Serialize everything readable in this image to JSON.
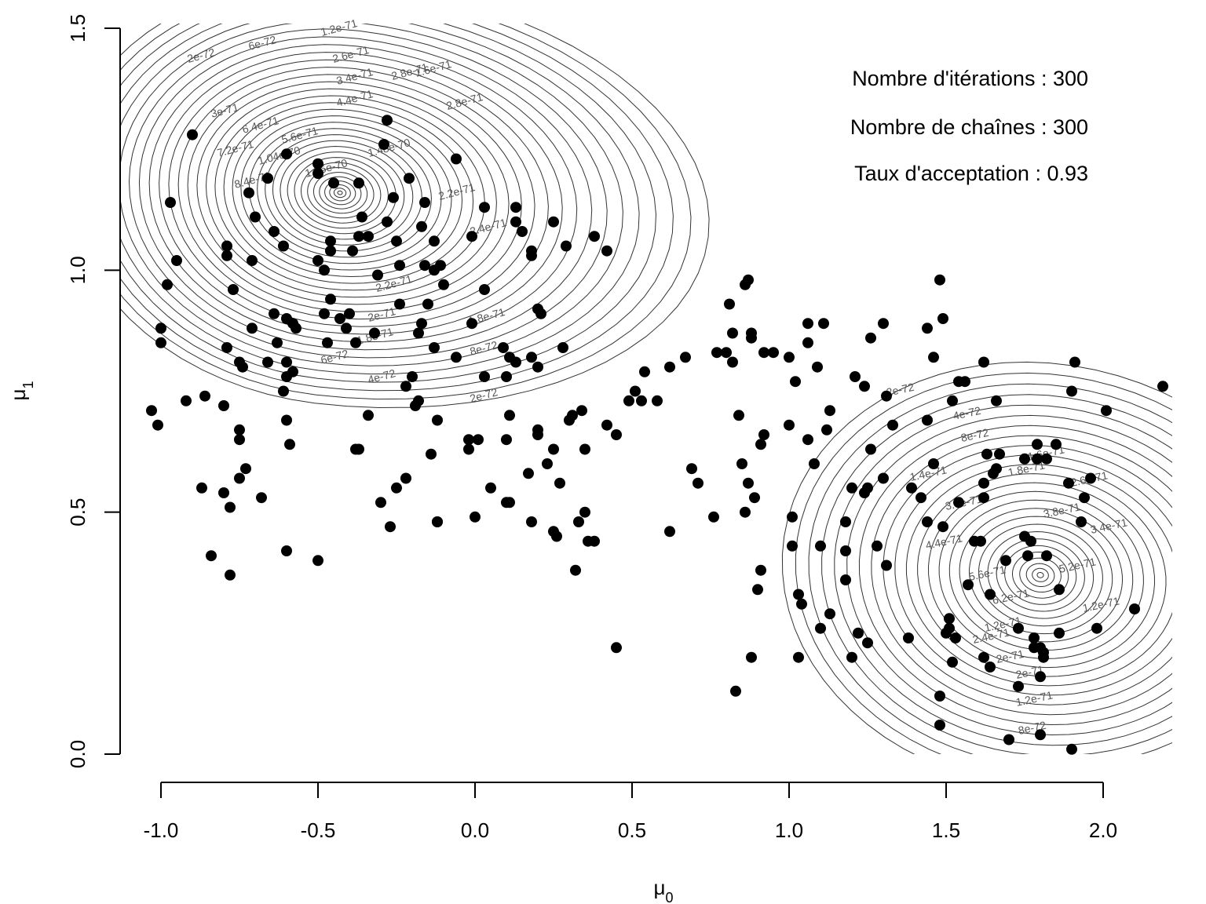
{
  "chart_data": {
    "type": "scatter",
    "xlabel": "μ0",
    "ylabel": "μ1",
    "xlim": [
      -1.05,
      2.2
    ],
    "ylim": [
      0.0,
      1.5
    ],
    "x_ticks": [
      "-1.0",
      "-0.5",
      "0.0",
      "0.5",
      "1.0",
      "1.5",
      "2.0"
    ],
    "y_ticks": [
      "0.0",
      "0.5",
      "1.0",
      "1.5"
    ],
    "annotations": [
      "Nombre d'itérations :  300",
      "Nombre de chaînes :  300",
      "Taux d'acceptation :  0.93"
    ],
    "contour_levels": [
      "2e-72",
      "4e-72",
      "6e-72",
      "8e-72",
      "1e-71",
      "1.2e-71",
      "1.4e-71",
      "1.6e-71",
      "1.8e-71",
      "2e-71",
      "2.2e-71",
      "2.4e-71",
      "2.6e-71",
      "2.8e-71",
      "3e-71",
      "3.4e-71",
      "3.8e-71",
      "4.4e-71",
      "5.2e-71",
      "5.6e-71",
      "6.2e-71",
      "6.4e-71",
      "7.2e-71",
      "8.4e-71",
      "1.04e-70",
      "1.36e-70",
      "1.48e-70"
    ],
    "contour_modes": [
      {
        "x": -0.43,
        "y": 1.16
      },
      {
        "x": 1.8,
        "y": 0.37
      }
    ],
    "points": [
      [
        -0.45,
        1.18
      ],
      [
        -0.5,
        1.22
      ],
      [
        -0.5,
        1.2
      ],
      [
        -0.6,
        1.24
      ],
      [
        -0.37,
        1.18
      ],
      [
        -0.66,
        1.19
      ],
      [
        -0.72,
        1.16
      ],
      [
        -0.79,
        1.05
      ],
      [
        -0.79,
        1.03
      ],
      [
        -0.7,
        1.11
      ],
      [
        -0.64,
        1.08
      ],
      [
        -0.61,
        1.05
      ],
      [
        -0.71,
        1.02
      ],
      [
        -0.97,
        1.14
      ],
      [
        -0.95,
        1.02
      ],
      [
        -0.98,
        0.97
      ],
      [
        -0.9,
        1.28
      ],
      [
        -0.28,
        1.31
      ],
      [
        -0.29,
        1.26
      ],
      [
        -0.26,
        1.15
      ],
      [
        -0.21,
        1.19
      ],
      [
        -0.16,
        1.14
      ],
      [
        -0.17,
        1.09
      ],
      [
        -0.28,
        1.1
      ],
      [
        -0.36,
        1.11
      ],
      [
        -0.34,
        1.07
      ],
      [
        -0.37,
        1.07
      ],
      [
        -0.46,
        1.06
      ],
      [
        -0.46,
        1.04
      ],
      [
        -0.5,
        1.02
      ],
      [
        -0.48,
        1.0
      ],
      [
        -0.39,
        1.04
      ],
      [
        -0.25,
        1.06
      ],
      [
        -0.24,
        1.01
      ],
      [
        -0.31,
        0.99
      ],
      [
        -0.16,
        1.01
      ],
      [
        -0.13,
        1.06
      ],
      [
        -0.13,
        1.0
      ],
      [
        -0.11,
        1.01
      ],
      [
        -0.1,
        0.97
      ],
      [
        -0.15,
        0.93
      ],
      [
        -0.24,
        0.93
      ],
      [
        -0.46,
        0.94
      ],
      [
        -0.48,
        0.91
      ],
      [
        -0.43,
        0.9
      ],
      [
        -0.4,
        0.91
      ],
      [
        -0.41,
        0.88
      ],
      [
        -0.38,
        0.85
      ],
      [
        -0.47,
        0.85
      ],
      [
        -0.64,
        0.91
      ],
      [
        -0.58,
        0.89
      ],
      [
        -0.6,
        0.9
      ],
      [
        -0.57,
        0.88
      ],
      [
        -0.32,
        0.87
      ],
      [
        -0.18,
        0.87
      ],
      [
        -0.17,
        0.89
      ],
      [
        -0.77,
        0.96
      ],
      [
        -0.71,
        0.88
      ],
      [
        -0.79,
        0.84
      ],
      [
        -0.63,
        0.85
      ],
      [
        -0.75,
        0.81
      ],
      [
        -0.74,
        0.8
      ],
      [
        -0.66,
        0.81
      ],
      [
        -0.6,
        0.81
      ],
      [
        -0.58,
        0.79
      ],
      [
        -0.6,
        0.78
      ],
      [
        -0.61,
        0.75
      ],
      [
        -0.13,
        0.84
      ],
      [
        -0.06,
        0.82
      ],
      [
        -0.01,
        0.89
      ],
      [
        0.03,
        0.96
      ],
      [
        -0.06,
        1.23
      ],
      [
        -0.01,
        1.07
      ],
      [
        0.03,
        1.13
      ],
      [
        0.13,
        1.13
      ],
      [
        0.13,
        1.1
      ],
      [
        0.15,
        1.08
      ],
      [
        0.18,
        1.03
      ],
      [
        0.18,
        1.04
      ],
      [
        0.25,
        1.1
      ],
      [
        0.29,
        1.05
      ],
      [
        0.38,
        1.07
      ],
      [
        0.42,
        1.04
      ],
      [
        0.2,
        0.92
      ],
      [
        0.21,
        0.91
      ],
      [
        0.09,
        0.84
      ],
      [
        0.11,
        0.82
      ],
      [
        0.13,
        0.81
      ],
      [
        0.18,
        0.82
      ],
      [
        0.2,
        0.8
      ],
      [
        0.28,
        0.84
      ],
      [
        0.1,
        0.78
      ],
      [
        0.03,
        0.78
      ],
      [
        -1.0,
        0.88
      ],
      [
        -1.0,
        0.85
      ],
      [
        -1.03,
        0.71
      ],
      [
        -1.01,
        0.68
      ],
      [
        -0.92,
        0.73
      ],
      [
        -0.86,
        0.74
      ],
      [
        -0.8,
        0.72
      ],
      [
        -0.75,
        0.67
      ],
      [
        -0.75,
        0.65
      ],
      [
        -0.73,
        0.59
      ],
      [
        -0.75,
        0.57
      ],
      [
        -0.68,
        0.53
      ],
      [
        -0.87,
        0.55
      ],
      [
        -0.8,
        0.54
      ],
      [
        -0.78,
        0.51
      ],
      [
        -0.84,
        0.41
      ],
      [
        -0.78,
        0.37
      ],
      [
        -0.6,
        0.42
      ],
      [
        -0.5,
        0.4
      ],
      [
        -0.6,
        0.69
      ],
      [
        -0.59,
        0.64
      ],
      [
        -0.34,
        0.7
      ],
      [
        -0.38,
        0.63
      ],
      [
        -0.37,
        0.63
      ],
      [
        -0.3,
        0.52
      ],
      [
        -0.27,
        0.47
      ],
      [
        -0.25,
        0.55
      ],
      [
        -0.22,
        0.57
      ],
      [
        -0.22,
        0.76
      ],
      [
        -0.2,
        0.78
      ],
      [
        -0.19,
        0.72
      ],
      [
        -0.18,
        0.73
      ],
      [
        -0.12,
        0.69
      ],
      [
        -0.14,
        0.62
      ],
      [
        -0.12,
        0.48
      ],
      [
        -0.12,
        0.48
      ],
      [
        -0.02,
        0.65
      ],
      [
        -0.02,
        0.63
      ],
      [
        0.01,
        0.65
      ],
      [
        0.0,
        0.49
      ],
      [
        0.05,
        0.55
      ],
      [
        0.1,
        0.52
      ],
      [
        0.1,
        0.65
      ],
      [
        0.11,
        0.7
      ],
      [
        0.11,
        0.52
      ],
      [
        0.17,
        0.58
      ],
      [
        0.18,
        0.48
      ],
      [
        0.2,
        0.66
      ],
      [
        0.2,
        0.67
      ],
      [
        0.23,
        0.6
      ],
      [
        0.25,
        0.63
      ],
      [
        0.25,
        0.46
      ],
      [
        0.26,
        0.45
      ],
      [
        0.27,
        0.56
      ],
      [
        0.3,
        0.69
      ],
      [
        0.31,
        0.7
      ],
      [
        0.34,
        0.71
      ],
      [
        0.35,
        0.5
      ],
      [
        0.33,
        0.48
      ],
      [
        0.32,
        0.38
      ],
      [
        0.35,
        0.63
      ],
      [
        0.36,
        0.44
      ],
      [
        0.38,
        0.44
      ],
      [
        0.42,
        0.68
      ],
      [
        0.45,
        0.66
      ],
      [
        0.45,
        0.22
      ],
      [
        0.62,
        0.46
      ],
      [
        0.49,
        0.73
      ],
      [
        0.51,
        0.75
      ],
      [
        0.53,
        0.73
      ],
      [
        0.54,
        0.79
      ],
      [
        0.58,
        0.73
      ],
      [
        0.62,
        0.8
      ],
      [
        0.67,
        0.82
      ],
      [
        0.69,
        0.59
      ],
      [
        0.71,
        0.56
      ],
      [
        0.76,
        0.49
      ],
      [
        0.77,
        0.83
      ],
      [
        0.8,
        0.83
      ],
      [
        0.81,
        0.93
      ],
      [
        0.82,
        0.87
      ],
      [
        0.82,
        0.81
      ],
      [
        0.84,
        0.7
      ],
      [
        0.85,
        0.6
      ],
      [
        0.86,
        0.5
      ],
      [
        0.87,
        0.56
      ],
      [
        0.86,
        0.97
      ],
      [
        0.87,
        0.98
      ],
      [
        0.88,
        0.87
      ],
      [
        0.88,
        0.86
      ],
      [
        0.89,
        0.53
      ],
      [
        0.9,
        0.34
      ],
      [
        0.91,
        0.64
      ],
      [
        0.91,
        0.38
      ],
      [
        0.92,
        0.66
      ],
      [
        0.92,
        0.83
      ],
      [
        0.95,
        0.83
      ],
      [
        0.83,
        0.13
      ],
      [
        0.88,
        0.2
      ],
      [
        1.0,
        0.82
      ],
      [
        1.0,
        0.68
      ],
      [
        1.01,
        0.49
      ],
      [
        1.01,
        0.43
      ],
      [
        1.02,
        0.77
      ],
      [
        1.03,
        0.33
      ],
      [
        1.04,
        0.31
      ],
      [
        1.03,
        0.2
      ],
      [
        1.06,
        0.89
      ],
      [
        1.06,
        0.85
      ],
      [
        1.06,
        0.65
      ],
      [
        1.08,
        0.6
      ],
      [
        1.09,
        0.8
      ],
      [
        1.1,
        0.43
      ],
      [
        1.11,
        0.89
      ],
      [
        1.1,
        0.26
      ],
      [
        1.12,
        0.67
      ],
      [
        1.13,
        0.71
      ],
      [
        1.13,
        0.29
      ],
      [
        1.18,
        0.48
      ],
      [
        1.18,
        0.42
      ],
      [
        1.18,
        0.36
      ],
      [
        1.2,
        0.2
      ],
      [
        1.2,
        0.55
      ],
      [
        1.21,
        0.78
      ],
      [
        1.22,
        0.25
      ],
      [
        1.24,
        0.76
      ],
      [
        1.24,
        0.54
      ],
      [
        1.25,
        0.23
      ],
      [
        1.25,
        0.55
      ],
      [
        1.26,
        0.86
      ],
      [
        1.26,
        0.63
      ],
      [
        1.28,
        0.43
      ],
      [
        1.3,
        0.89
      ],
      [
        1.31,
        0.74
      ],
      [
        1.3,
        0.57
      ],
      [
        1.31,
        0.39
      ],
      [
        1.33,
        0.68
      ],
      [
        1.38,
        0.24
      ],
      [
        1.39,
        0.55
      ],
      [
        1.42,
        0.53
      ],
      [
        1.44,
        0.48
      ],
      [
        1.44,
        0.69
      ],
      [
        1.44,
        0.88
      ],
      [
        1.46,
        0.82
      ],
      [
        1.46,
        0.6
      ],
      [
        1.48,
        0.98
      ],
      [
        1.49,
        0.9
      ],
      [
        1.48,
        0.12
      ],
      [
        1.48,
        0.06
      ],
      [
        1.49,
        0.47
      ],
      [
        1.5,
        0.25
      ],
      [
        1.51,
        0.26
      ],
      [
        1.51,
        0.28
      ],
      [
        1.52,
        0.19
      ],
      [
        1.52,
        0.73
      ],
      [
        1.53,
        0.24
      ],
      [
        1.54,
        0.77
      ],
      [
        1.56,
        0.77
      ],
      [
        1.57,
        0.35
      ],
      [
        1.59,
        0.44
      ],
      [
        1.61,
        0.44
      ],
      [
        1.54,
        0.52
      ],
      [
        1.62,
        0.81
      ],
      [
        1.62,
        0.53
      ],
      [
        1.62,
        0.56
      ],
      [
        1.62,
        0.2
      ],
      [
        1.64,
        0.18
      ],
      [
        1.63,
        0.62
      ],
      [
        1.65,
        0.58
      ],
      [
        1.66,
        0.73
      ],
      [
        1.67,
        0.62
      ],
      [
        1.66,
        0.59
      ],
      [
        1.64,
        0.33
      ],
      [
        1.7,
        0.03
      ],
      [
        1.69,
        0.4
      ],
      [
        1.73,
        0.26
      ],
      [
        1.73,
        0.14
      ],
      [
        1.75,
        0.45
      ],
      [
        1.76,
        0.41
      ],
      [
        1.75,
        0.61
      ],
      [
        1.77,
        0.44
      ],
      [
        1.79,
        0.61
      ],
      [
        1.79,
        0.64
      ],
      [
        1.78,
        0.24
      ],
      [
        1.78,
        0.22
      ],
      [
        1.8,
        0.22
      ],
      [
        1.8,
        0.16
      ],
      [
        1.81,
        0.21
      ],
      [
        1.81,
        0.2
      ],
      [
        1.8,
        0.04
      ],
      [
        1.82,
        0.61
      ],
      [
        1.82,
        0.41
      ],
      [
        1.85,
        0.64
      ],
      [
        1.86,
        0.34
      ],
      [
        1.86,
        0.25
      ],
      [
        1.89,
        0.56
      ],
      [
        1.9,
        0.01
      ],
      [
        1.9,
        0.75
      ],
      [
        1.91,
        0.81
      ],
      [
        1.93,
        0.48
      ],
      [
        1.94,
        0.53
      ],
      [
        1.96,
        0.57
      ],
      [
        1.98,
        0.26
      ],
      [
        2.01,
        0.71
      ],
      [
        2.1,
        0.3
      ],
      [
        2.19,
        0.76
      ]
    ]
  }
}
